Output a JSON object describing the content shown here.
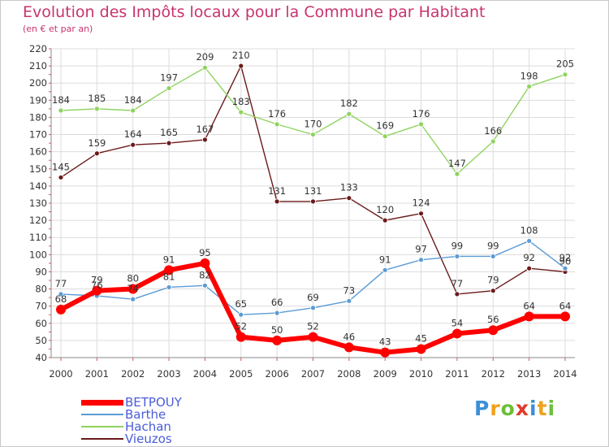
{
  "title": "Evolution des Impôts locaux pour la Commune par Habitant",
  "subtitle": "(en € et par an)",
  "chart_data": {
    "type": "line",
    "title": "Evolution des Impôts locaux pour la Commune par Habitant",
    "ylabel": "(en € et par an)",
    "xlabel": "",
    "x": [
      "2000",
      "2001",
      "2002",
      "2003",
      "2004",
      "2005",
      "2006",
      "2007",
      "2008",
      "2009",
      "2010",
      "2011",
      "2012",
      "2013",
      "2014"
    ],
    "ylim": [
      40,
      220
    ],
    "yticks": [
      40,
      50,
      60,
      70,
      80,
      90,
      100,
      110,
      120,
      130,
      140,
      150,
      160,
      170,
      180,
      190,
      200,
      210,
      220
    ],
    "grid": true,
    "series": [
      {
        "name": "BETPOUY",
        "color": "#ff0000",
        "values": [
          68,
          79,
          80,
          91,
          95,
          52,
          50,
          52,
          46,
          43,
          45,
          54,
          56,
          64,
          64
        ]
      },
      {
        "name": "Barthe",
        "color": "#5b9bd5",
        "values": [
          77,
          76,
          74,
          81,
          82,
          65,
          66,
          69,
          73,
          91,
          97,
          99,
          99,
          108,
          92
        ]
      },
      {
        "name": "Hachan",
        "color": "#8fd35f",
        "values": [
          184,
          185,
          184,
          197,
          209,
          183,
          176,
          170,
          182,
          169,
          176,
          147,
          166,
          198,
          205
        ]
      },
      {
        "name": "Vieuzos",
        "color": "#6b1a1a",
        "values": [
          145,
          159,
          164,
          165,
          167,
          210,
          131,
          131,
          133,
          120,
          124,
          77,
          79,
          92,
          90
        ]
      }
    ]
  },
  "legend": [
    {
      "label": "BETPOUY",
      "color": "#ff0000",
      "text_color": "#4a5cd8"
    },
    {
      "label": "Barthe",
      "color": "#5b9bd5",
      "text_color": "#4a5cd8"
    },
    {
      "label": "Hachan",
      "color": "#8fd35f",
      "text_color": "#4a5cd8"
    },
    {
      "label": "Vieuzos",
      "color": "#6b1a1a",
      "text_color": "#4a5cd8"
    }
  ],
  "logo": {
    "letters": [
      "P",
      "r",
      "o",
      "x",
      "i",
      "t",
      "i"
    ],
    "colors": [
      "#3a8fd8",
      "#f0a21a",
      "#6cbf3a",
      "#e23a2a",
      "#3a8fd8",
      "#f0a21a",
      "#6cbf3a"
    ]
  }
}
